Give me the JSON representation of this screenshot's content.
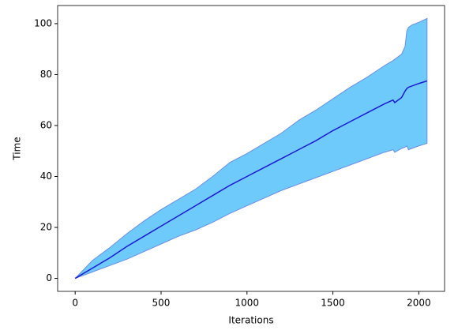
{
  "chart_data": {
    "type": "band-line",
    "x_label": "Iterations",
    "y_label": "Time",
    "x": [
      0,
      100,
      200,
      300,
      400,
      500,
      600,
      700,
      800,
      900,
      1000,
      1100,
      1200,
      1300,
      1400,
      1500,
      1600,
      1700,
      1800,
      1850,
      1860,
      1900,
      1920,
      1930,
      1940,
      1960,
      2000,
      2048
    ],
    "values": [
      0,
      4,
      8,
      12.5,
      16.5,
      20.5,
      24.5,
      28.5,
      32.5,
      36.5,
      40,
      43.5,
      47,
      50.5,
      54,
      58,
      61.5,
      65,
      68.5,
      70,
      69,
      71,
      73.5,
      74.5,
      75,
      75.5,
      76.5,
      77.5
    ],
    "band": {
      "upper": [
        0,
        7,
        12,
        17.5,
        22.5,
        27,
        31,
        35,
        40,
        45.5,
        49,
        53,
        57,
        62,
        66,
        70.5,
        75,
        79,
        83.5,
        85.5,
        86,
        88,
        91,
        97,
        98.5,
        99.5,
        100.5,
        102
      ],
      "lower": [
        0,
        2.5,
        5,
        7.5,
        10.5,
        13.5,
        16.5,
        19,
        22,
        25.5,
        28.5,
        31.5,
        34.5,
        37,
        39.5,
        42,
        44.5,
        47,
        49.5,
        50.5,
        49.5,
        51,
        51.5,
        52,
        50.5,
        51,
        52,
        53
      ]
    },
    "color": "#1a1ad6",
    "band_color": "#6fcafc",
    "band_edge_color": "#6a8ee6",
    "xlim": [
      -102,
      2150
    ],
    "ylim": [
      -5.1,
      107.1
    ],
    "xticks": [
      0,
      500,
      1000,
      1500,
      2000
    ],
    "yticks": [
      0,
      20,
      40,
      60,
      80,
      100
    ]
  }
}
